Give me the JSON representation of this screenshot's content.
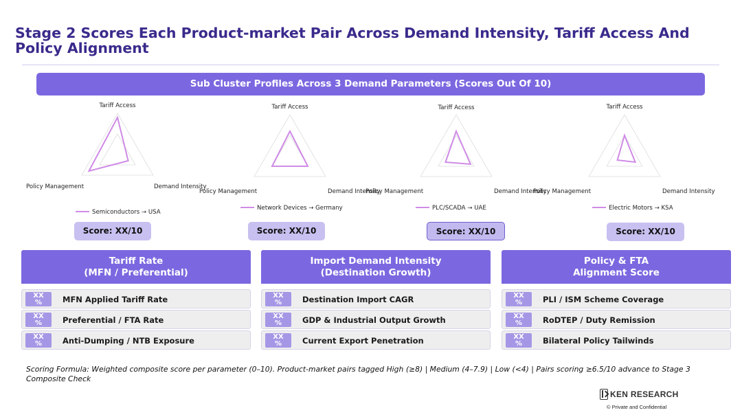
{
  "page": {
    "title": "Stage 2 Scores Each Product-market Pair Across Demand Intensity, Tariff Access And Policy Alignment",
    "banner": "Sub Cluster Profiles Across 3 Demand Parameters (Scores Out Of 10)"
  },
  "colors": {
    "accent": "#7b68e0",
    "title": "#3b2a8c",
    "badge": "#a697e6",
    "score_bg": "#c8c0f0",
    "series": "#cf8be6"
  },
  "chart_data": [
    {
      "type": "radar",
      "axes": [
        "Tariff Access",
        "Demand Intensity",
        "Policy Management"
      ],
      "range": [
        0,
        10
      ],
      "series": [
        {
          "name": "Semiconductors → USA",
          "values": [
            9,
            3,
            8
          ]
        }
      ],
      "score_label": "Score: XX/10"
    },
    {
      "type": "radar",
      "axes": [
        "Tariff Access",
        "Demand Intensity",
        "Policy Management"
      ],
      "range": [
        0,
        10
      ],
      "series": [
        {
          "name": "Network Devices → Germany",
          "values": [
            6,
            5,
            5
          ]
        }
      ],
      "score_label": "Score: XX/10"
    },
    {
      "type": "radar",
      "axes": [
        "Tariff Access",
        "Demand Intensity",
        "Policy Management"
      ],
      "range": [
        0,
        10
      ],
      "series": [
        {
          "name": "PLC/SCADA → UAE",
          "values": [
            6,
            4,
            3
          ]
        }
      ],
      "score_label": "Score: XX/10"
    },
    {
      "type": "radar",
      "axes": [
        "Tariff Access",
        "Demand Intensity",
        "Policy Management"
      ],
      "range": [
        0,
        10
      ],
      "series": [
        {
          "name": "Electric Motors → KSA",
          "values": [
            5,
            3,
            2
          ]
        }
      ],
      "score_label": "Score: XX/10"
    }
  ],
  "columns": [
    {
      "header_line1": "Tariff Rate",
      "header_line2": "(MFN / Preferential)",
      "rows": [
        {
          "badge_top": "XX",
          "badge_bottom": "%",
          "label": "MFN Applied Tariff Rate"
        },
        {
          "badge_top": "XX",
          "badge_bottom": "%",
          "label": "Preferential / FTA Rate"
        },
        {
          "badge_top": "XX",
          "badge_bottom": "%",
          "label": "Anti-Dumping / NTB Exposure"
        }
      ]
    },
    {
      "header_line1": "Import Demand Intensity",
      "header_line2": "(Destination Growth)",
      "rows": [
        {
          "badge_top": "XX",
          "badge_bottom": "%",
          "label": "Destination Import CAGR"
        },
        {
          "badge_top": "XX",
          "badge_bottom": "%",
          "label": "GDP & Industrial Output Growth"
        },
        {
          "badge_top": "XX",
          "badge_bottom": "%",
          "label": "Current Export Penetration"
        }
      ]
    },
    {
      "header_line1": "Policy & FTA",
      "header_line2": "Alignment Score",
      "rows": [
        {
          "badge_top": "XX",
          "badge_bottom": "%",
          "label": "PLI / ISM Scheme Coverage"
        },
        {
          "badge_top": "XX",
          "badge_bottom": "%",
          "label": "RoDTEP / Duty Remission"
        },
        {
          "badge_top": "XX",
          "badge_bottom": "%",
          "label": "Bilateral Policy Tailwinds"
        }
      ]
    }
  ],
  "footer": {
    "note_line1": "Scoring Formula: Weighted composite score per parameter (0–10).  Product-market pairs tagged  High (≥8)  |  Medium (4–7.9)  |  Low (<4)  |  Pairs scoring ≥6.5/10 advance to Stage 3",
    "note_line2": "Composite Check",
    "logo_text": "KEN RESEARCH",
    "logo_icon": "ken-research-logo-icon",
    "confidential": "© Private and Confidential"
  }
}
